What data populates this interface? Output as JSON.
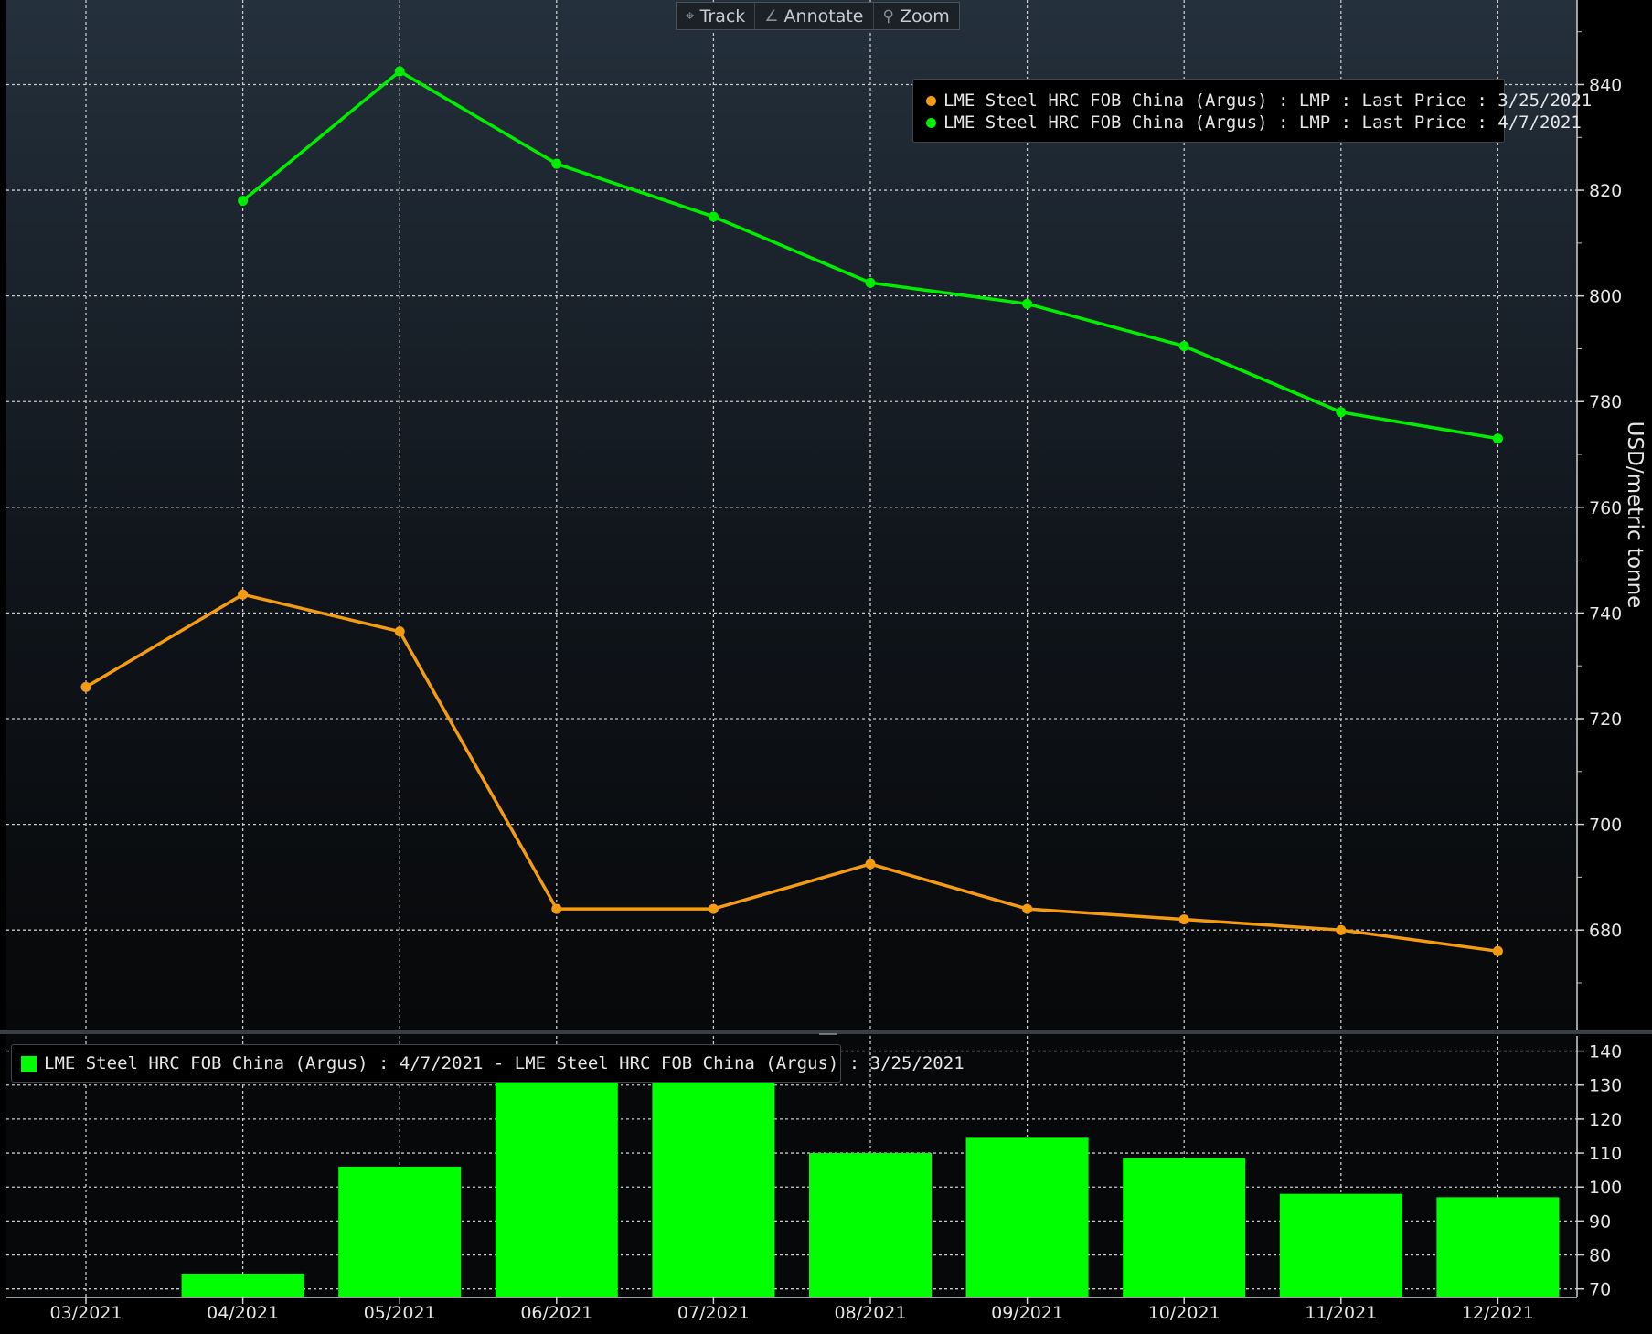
{
  "toolbar": {
    "track_label": "Track",
    "annotate_label": "Annotate",
    "zoom_label": "Zoom"
  },
  "colors": {
    "series_1": "#f39c12",
    "series_2": "#00ee00",
    "bars": "#00ff00",
    "grid": "#c8c8c8",
    "text": "#e6e6e6"
  },
  "chart_data": [
    {
      "type": "line",
      "categories": [
        "03/2021",
        "04/2021",
        "05/2021",
        "06/2021",
        "07/2021",
        "08/2021",
        "09/2021",
        "10/2021",
        "11/2021",
        "12/2021"
      ],
      "series": [
        {
          "name": "LME Steel HRC FOB China (Argus) : LMP : Last Price : 3/25/2021",
          "values": [
            726,
            743.5,
            736.5,
            684,
            684,
            692.5,
            684,
            682,
            680,
            676
          ]
        },
        {
          "name": "LME Steel HRC FOB China (Argus) : LMP : Last Price : 4/7/2021",
          "values": [
            null,
            818,
            842.5,
            825,
            815,
            802.5,
            798.5,
            790.5,
            778,
            773
          ]
        }
      ],
      "ylabel": "USD/metric tonne",
      "yticks": [
        680,
        700,
        720,
        740,
        760,
        780,
        800,
        820,
        840
      ],
      "ylim": [
        661,
        856
      ],
      "grid": true,
      "legend": "top-right",
      "axis_side": "right"
    },
    {
      "type": "bar",
      "categories": [
        "03/2021",
        "04/2021",
        "05/2021",
        "06/2021",
        "07/2021",
        "08/2021",
        "09/2021",
        "10/2021",
        "11/2021",
        "12/2021"
      ],
      "series": [
        {
          "name": "LME Steel HRC FOB China (Argus) : 4/7/2021 - LME Steel HRC FOB China (Argus) : 3/25/2021",
          "values": [
            null,
            74.5,
            106,
            141,
            131,
            110,
            114.5,
            108.5,
            98,
            97
          ]
        }
      ],
      "yticks": [
        70,
        80,
        90,
        100,
        110,
        120,
        130,
        140
      ],
      "ylim": [
        67.5,
        145
      ],
      "grid": true,
      "legend": "top-left",
      "axis_side": "right"
    }
  ]
}
